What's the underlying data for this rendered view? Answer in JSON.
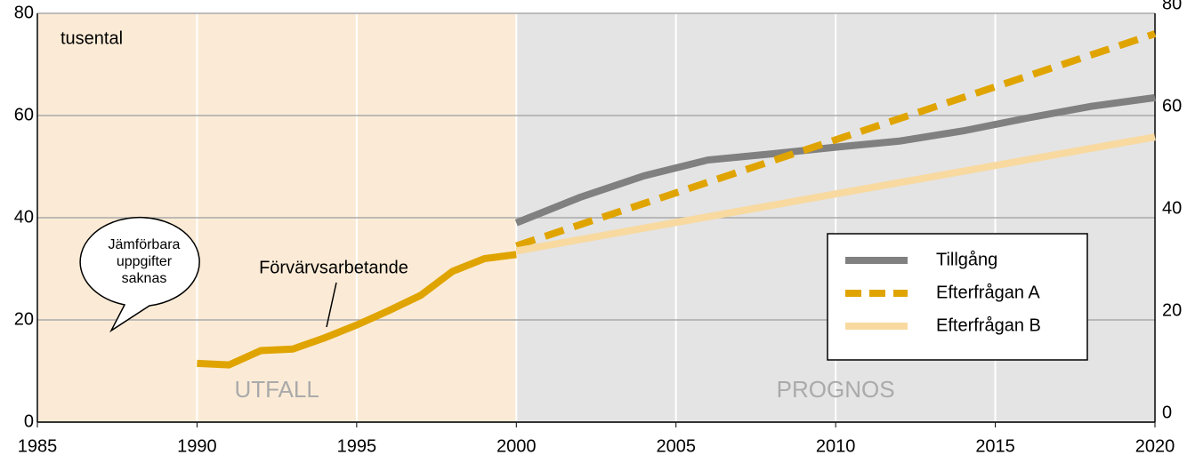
{
  "chart_data": {
    "type": "line",
    "unit_label": "tusental",
    "regions": [
      {
        "label": "UTFALL",
        "from": 1985,
        "to": 2000,
        "color": "#fbebd6"
      },
      {
        "label": "PROGNOS",
        "from": 2000,
        "to": 2020,
        "color": "#e4e4e4"
      }
    ],
    "annotation": "Förvärvsarbetande",
    "bubble_text": [
      "Jämförbara",
      "uppgifter",
      "saknas"
    ],
    "xlim": [
      1985,
      2020
    ],
    "xticks": [
      1985,
      1990,
      1995,
      2000,
      2005,
      2010,
      2015,
      2020
    ],
    "ylim": [
      0,
      80
    ],
    "yticks": [
      0,
      20,
      40,
      60,
      80
    ],
    "y2lim": [
      0,
      80
    ],
    "y2ticks": [
      0,
      20,
      40,
      60,
      80
    ],
    "grid": true,
    "series": [
      {
        "name": "Förvärvsarbetande",
        "color": "#e0a400",
        "dash": false,
        "legend": false,
        "x": [
          1990,
          1991,
          1992,
          1993,
          1994,
          1995,
          1996,
          1997,
          1998,
          1999,
          2000
        ],
        "values": [
          11.5,
          11.2,
          14,
          14.3,
          16.5,
          19,
          21.8,
          24.8,
          29.5,
          32,
          32.8
        ]
      },
      {
        "name": "Tillgång",
        "color": "#808080",
        "dash": false,
        "legend": true,
        "x": [
          2000,
          2002,
          2004,
          2006,
          2008,
          2010,
          2012,
          2014,
          2016,
          2018,
          2020
        ],
        "values": [
          39,
          44,
          48.2,
          51.3,
          52.5,
          53.8,
          55,
          57,
          59.5,
          61.8,
          63.5
        ]
      },
      {
        "name": "Efterfrågan A",
        "color": "#e0a400",
        "dash": true,
        "legend": true,
        "x": [
          2000,
          2020
        ],
        "values": [
          34.5,
          76
        ]
      },
      {
        "name": "Efterfrågan B",
        "color": "#f8d9a0",
        "dash": false,
        "legend": true,
        "x": [
          2000,
          2020
        ],
        "values": [
          33.5,
          55.8
        ]
      }
    ]
  }
}
